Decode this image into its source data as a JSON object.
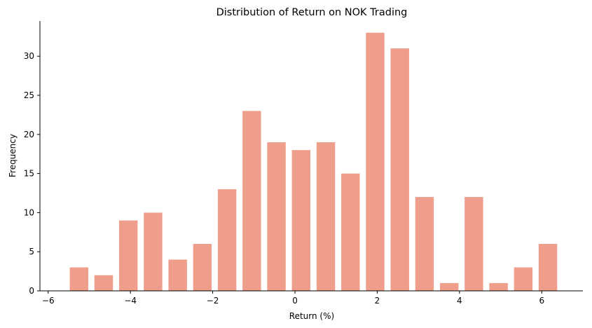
{
  "chart_data": {
    "type": "bar",
    "title": "Distribution of Return on NOK Trading",
    "xlabel": "Return (%)",
    "ylabel": "Frequency",
    "bar_color": "#ee9e8a",
    "x": [
      -5.25,
      -4.65,
      -4.05,
      -3.45,
      -2.85,
      -2.25,
      -1.65,
      -1.05,
      -0.45,
      0.15,
      0.75,
      1.35,
      1.95,
      2.55,
      3.15,
      3.75,
      4.35,
      4.95,
      5.55,
      6.15
    ],
    "values": [
      3,
      2,
      9,
      10,
      4,
      6,
      13,
      23,
      19,
      18,
      19,
      15,
      33,
      31,
      12,
      1,
      12,
      1,
      3,
      6
    ],
    "bar_width": 0.45,
    "xlim": [
      -6.2,
      7.0
    ],
    "ylim": [
      0,
      34.5
    ],
    "x_ticks": [
      -6,
      -4,
      -2,
      0,
      2,
      4,
      6
    ],
    "x_tick_labels": [
      "−6",
      "−4",
      "−2",
      "0",
      "2",
      "4",
      "6"
    ],
    "y_ticks": [
      0,
      5,
      10,
      15,
      20,
      25,
      30
    ],
    "y_tick_labels": [
      "0",
      "5",
      "10",
      "15",
      "20",
      "25",
      "30"
    ],
    "grid": false,
    "spines": "left-bottom"
  }
}
